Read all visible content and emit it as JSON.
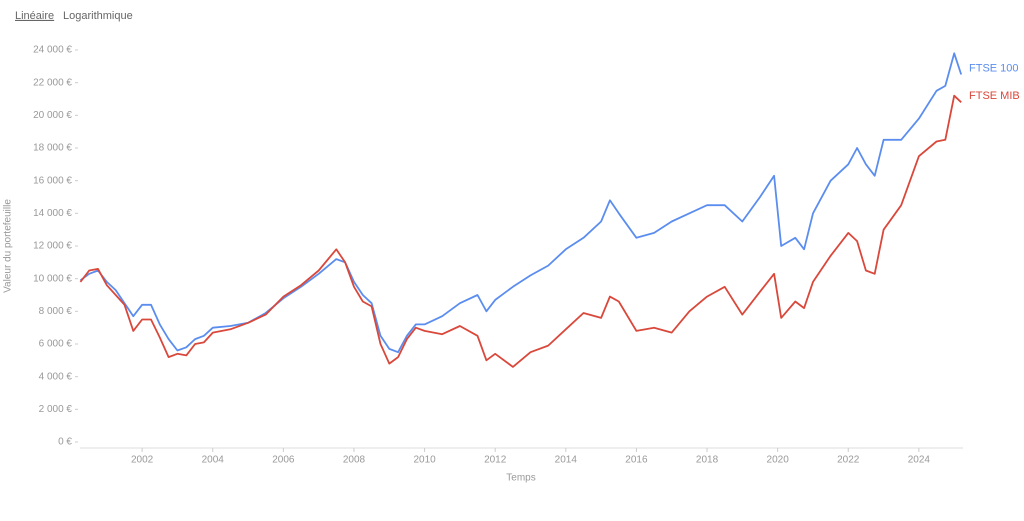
{
  "ui": {
    "scale_options": [
      "Linéaire",
      "Logarithmique"
    ]
  },
  "chart_data": {
    "type": "line",
    "x_label": "Temps",
    "y_label": "Valeur du portefeuille",
    "x": [
      2000.25,
      2000.5,
      2000.75,
      2001.0,
      2001.25,
      2001.5,
      2001.75,
      2002.0,
      2002.25,
      2002.5,
      2002.75,
      2003.0,
      2003.25,
      2003.5,
      2003.75,
      2004.0,
      2004.5,
      2005.0,
      2005.5,
      2006.0,
      2006.5,
      2007.0,
      2007.5,
      2007.75,
      2008.0,
      2008.25,
      2008.5,
      2008.75,
      2009.0,
      2009.25,
      2009.5,
      2009.75,
      2010.0,
      2010.5,
      2011.0,
      2011.5,
      2011.75,
      2012.0,
      2012.5,
      2013.0,
      2013.5,
      2014.0,
      2014.5,
      2015.0,
      2015.25,
      2015.5,
      2016.0,
      2016.5,
      2017.0,
      2017.5,
      2018.0,
      2018.5,
      2019.0,
      2019.5,
      2019.9,
      2020.1,
      2020.5,
      2020.75,
      2021.0,
      2021.5,
      2022.0,
      2022.25,
      2022.5,
      2022.75,
      2023.0,
      2023.5,
      2024.0,
      2024.5,
      2024.75,
      2025.0,
      2025.2
    ],
    "series": [
      {
        "name": "FTSE 100",
        "color": "#5b8def",
        "values": [
          9900,
          10300,
          10500,
          9800,
          9300,
          8500,
          7700,
          8400,
          8400,
          7200,
          6300,
          5600,
          5800,
          6300,
          6500,
          7000,
          7100,
          7300,
          7900,
          8800,
          9500,
          10300,
          11200,
          11000,
          9800,
          9000,
          8500,
          6500,
          5700,
          5500,
          6500,
          7200,
          7200,
          7700,
          8500,
          9000,
          8000,
          8700,
          9500,
          10200,
          10800,
          11800,
          12500,
          13500,
          14800,
          14000,
          12500,
          12800,
          13500,
          14000,
          14500,
          14500,
          13500,
          15000,
          16300,
          12000,
          12500,
          11800,
          14000,
          16000,
          17000,
          18000,
          17000,
          16300,
          18500,
          18500,
          19800,
          21500,
          21800,
          23800,
          22500
        ]
      },
      {
        "name": "FTSE MIB",
        "color": "#d9483b",
        "values": [
          9800,
          10500,
          10600,
          9600,
          9000,
          8400,
          6800,
          7500,
          7500,
          6400,
          5200,
          5400,
          5300,
          6000,
          6100,
          6700,
          6900,
          7300,
          7800,
          8900,
          9600,
          10500,
          11800,
          11000,
          9500,
          8600,
          8300,
          6000,
          4800,
          5200,
          6300,
          7000,
          6800,
          6600,
          7100,
          6500,
          5000,
          5400,
          4600,
          5500,
          5900,
          6900,
          7900,
          7600,
          8900,
          8600,
          6800,
          7000,
          6700,
          8000,
          8900,
          9500,
          7800,
          9200,
          10300,
          7600,
          8600,
          8200,
          9800,
          11400,
          12800,
          12300,
          10500,
          10300,
          13000,
          14500,
          17500,
          18400,
          18500,
          21200,
          20800
        ]
      }
    ],
    "xlim": [
      2000.24,
      2025.25
    ],
    "xticks": [
      2002,
      2004,
      2006,
      2008,
      2010,
      2012,
      2014,
      2016,
      2018,
      2020,
      2022,
      2024
    ],
    "ylim": [
      0,
      24000
    ],
    "yticks": [
      {
        "value": 0,
        "label": "0 €"
      },
      {
        "value": 2000,
        "label": "2 000 €"
      },
      {
        "value": 4000,
        "label": "4 000 €"
      },
      {
        "value": 6000,
        "label": "6 000 €"
      },
      {
        "value": 8000,
        "label": "8 000 €"
      },
      {
        "value": 10000,
        "label": "10 000 €"
      },
      {
        "value": 12000,
        "label": "12 000 €"
      },
      {
        "value": 14000,
        "label": "14 000 €"
      },
      {
        "value": 16000,
        "label": "16 000 €"
      },
      {
        "value": 18000,
        "label": "18 000 €"
      },
      {
        "value": 20000,
        "label": "20 000 €"
      },
      {
        "value": 22000,
        "label": "22 000 €"
      },
      {
        "value": 24000,
        "label": "24 000 €"
      }
    ]
  }
}
